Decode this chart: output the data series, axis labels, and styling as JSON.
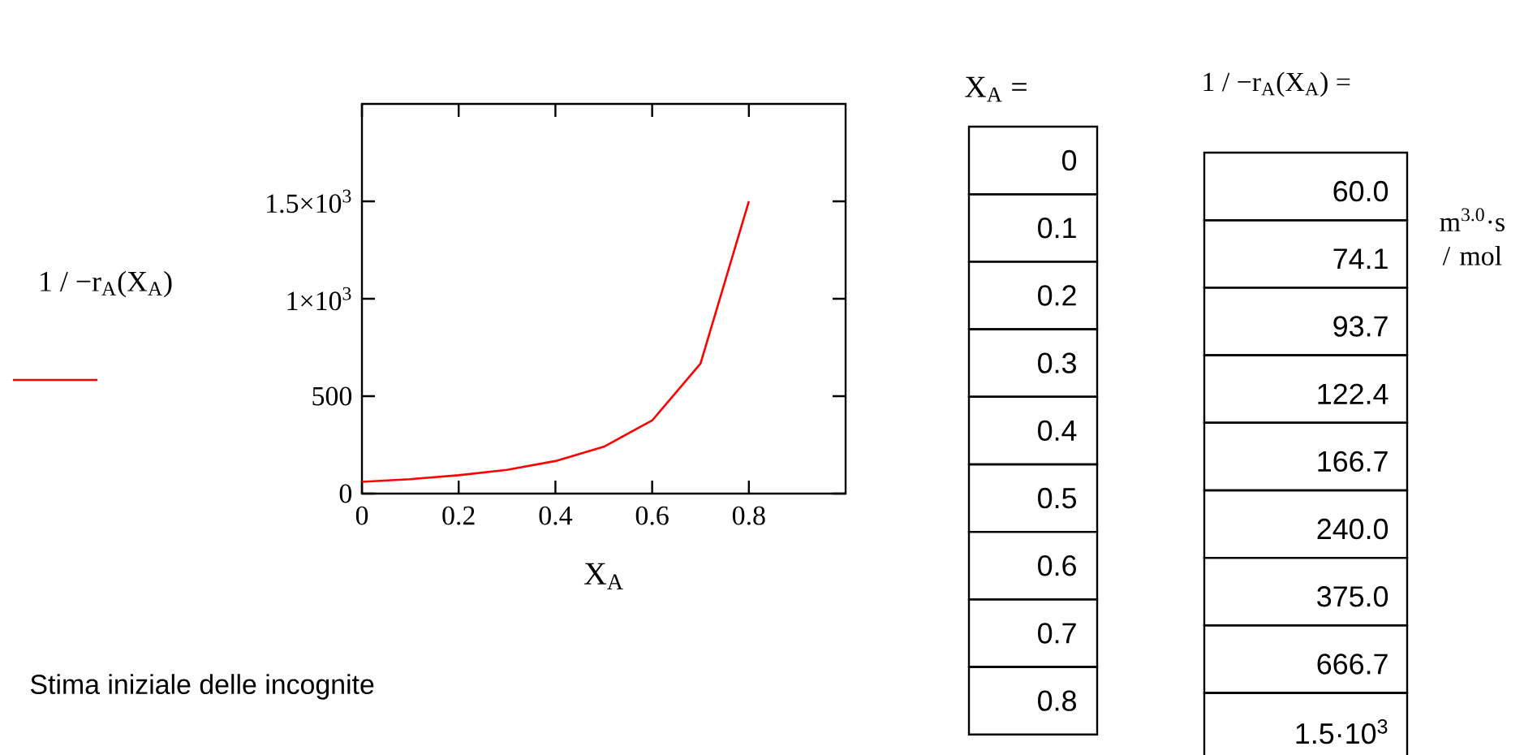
{
  "chart_data": {
    "type": "line",
    "xlabel": "X$_{A}$",
    "ylabel": "1 / −r$_{A}$(X$_{A}$)",
    "x": [
      0,
      0.1,
      0.2,
      0.3,
      0.4,
      0.5,
      0.6,
      0.7,
      0.8
    ],
    "series": [
      {
        "color": "#ff0000",
        "values": [
          60,
          74,
          94,
          122,
          167,
          240,
          375,
          667,
          1500
        ]
      }
    ],
    "xlim": [
      0,
      1
    ],
    "ylim": [
      0,
      2000
    ],
    "xticks": [
      0,
      0.2,
      0.4,
      0.6,
      0.8
    ],
    "yticks": [
      0,
      500,
      {
        "value": 1000,
        "label": "1×10$^{3}$"
      },
      {
        "value": 1500,
        "label": "1.5×10$^{3}$"
      }
    ],
    "grid": false,
    "legend": false,
    "marker": "none",
    "line_style": "solid",
    "annotations": [
      "X$_{A}$ =",
      "1 / −r$_{A}$(X$_{A}$) =",
      "m$^{3.0}$·s / mol",
      "Stima iniziale delle incognite",
      "0",
      "0.1",
      "0.2",
      "0.3",
      "0.4",
      "0.5",
      "0.6",
      "0.7",
      "0.8",
      "60.0",
      "74.1",
      "93.7",
      "122.4",
      "166.7",
      "240.0",
      "375.0",
      "666.7",
      "1.5·10$^{3}$"
    ]
  }
}
